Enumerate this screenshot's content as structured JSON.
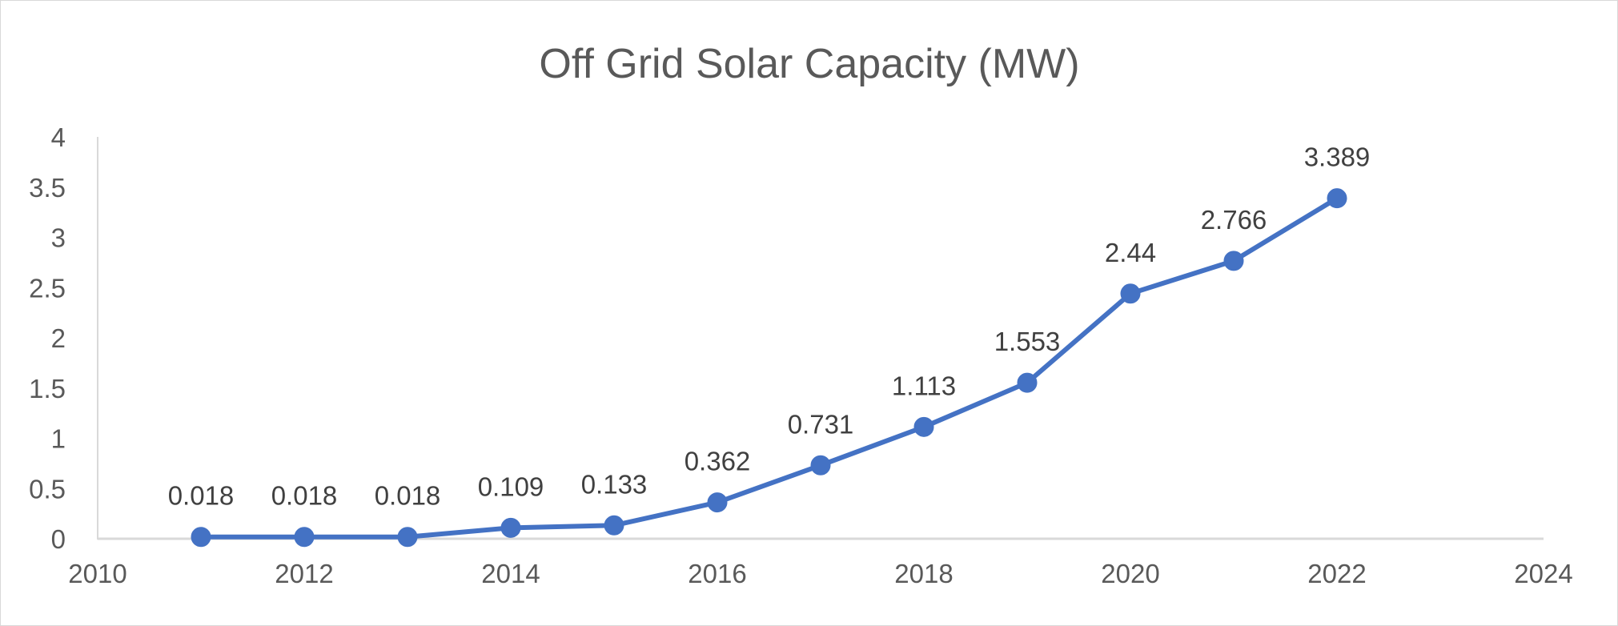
{
  "chart_data": {
    "type": "scatter",
    "title": "Off Grid Solar Capacity (MW)",
    "xlabel": "",
    "ylabel": "",
    "x": [
      2011,
      2012,
      2013,
      2014,
      2015,
      2016,
      2017,
      2018,
      2019,
      2020,
      2021,
      2022
    ],
    "series": [
      {
        "values": [
          0.018,
          0.018,
          0.018,
          0.109,
          0.133,
          0.362,
          0.731,
          1.113,
          1.553,
          2.44,
          2.766,
          3.389
        ],
        "labels": [
          "0.018",
          "0.018",
          "0.018",
          "0.109",
          "0.133",
          "0.362",
          "0.731",
          "1.113",
          "1.553",
          "2.44",
          "2.766",
          "3.389"
        ],
        "color": "#4472c4"
      }
    ],
    "xlim": [
      2010,
      2024
    ],
    "ylim": [
      0,
      4
    ],
    "x_ticks": [
      "2010",
      "2012",
      "2014",
      "2016",
      "2018",
      "2020",
      "2022",
      "2024"
    ],
    "y_ticks": [
      "0",
      "0.5",
      "1",
      "1.5",
      "2",
      "2.5",
      "3",
      "3.5",
      "4"
    ],
    "grid": false,
    "legend": "none",
    "markers": true,
    "lines": true
  }
}
